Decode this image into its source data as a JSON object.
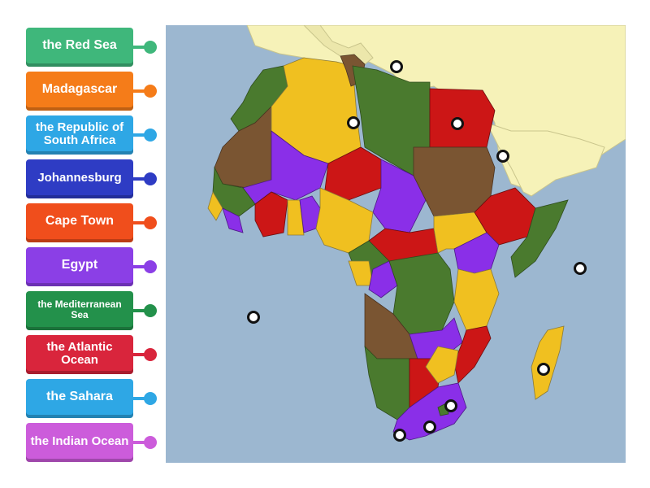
{
  "labels": [
    {
      "text": "the Red Sea",
      "color": "#3fb77b",
      "dot": "#3fb77b"
    },
    {
      "text": "Madagascar",
      "color": "#f57c19",
      "dot": "#f57c19"
    },
    {
      "text": "the Republic of South Africa",
      "color": "#2ea7e5",
      "dot": "#2ea7e5"
    },
    {
      "text": "Johannesburg",
      "color": "#2e3cc4",
      "dot": "#2e3cc4"
    },
    {
      "text": "Cape Town",
      "color": "#f04e1c",
      "dot": "#f04e1c"
    },
    {
      "text": "Egypt",
      "color": "#8b3fe6",
      "dot": "#8b3fe6"
    },
    {
      "text": "the Mediterranean Sea",
      "color": "#23914b",
      "dot": "#23914b"
    },
    {
      "text": "the Atlantic Ocean",
      "color": "#d9253c",
      "dot": "#d9253c"
    },
    {
      "text": "the Sahara",
      "color": "#2ea7e5",
      "dot": "#2ea7e5"
    },
    {
      "text": "the Indian Ocean",
      "color": "#cc5cdb",
      "dot": "#cc5cdb"
    }
  ],
  "map": {
    "ocean_color": "#9cb7d0",
    "land_color": "#f6f2b8",
    "country_colors": [
      "#e8b919",
      "#4a7a2e",
      "#cc1616",
      "#7a5532",
      "#8a2fe8",
      "#f0c020"
    ]
  }
}
